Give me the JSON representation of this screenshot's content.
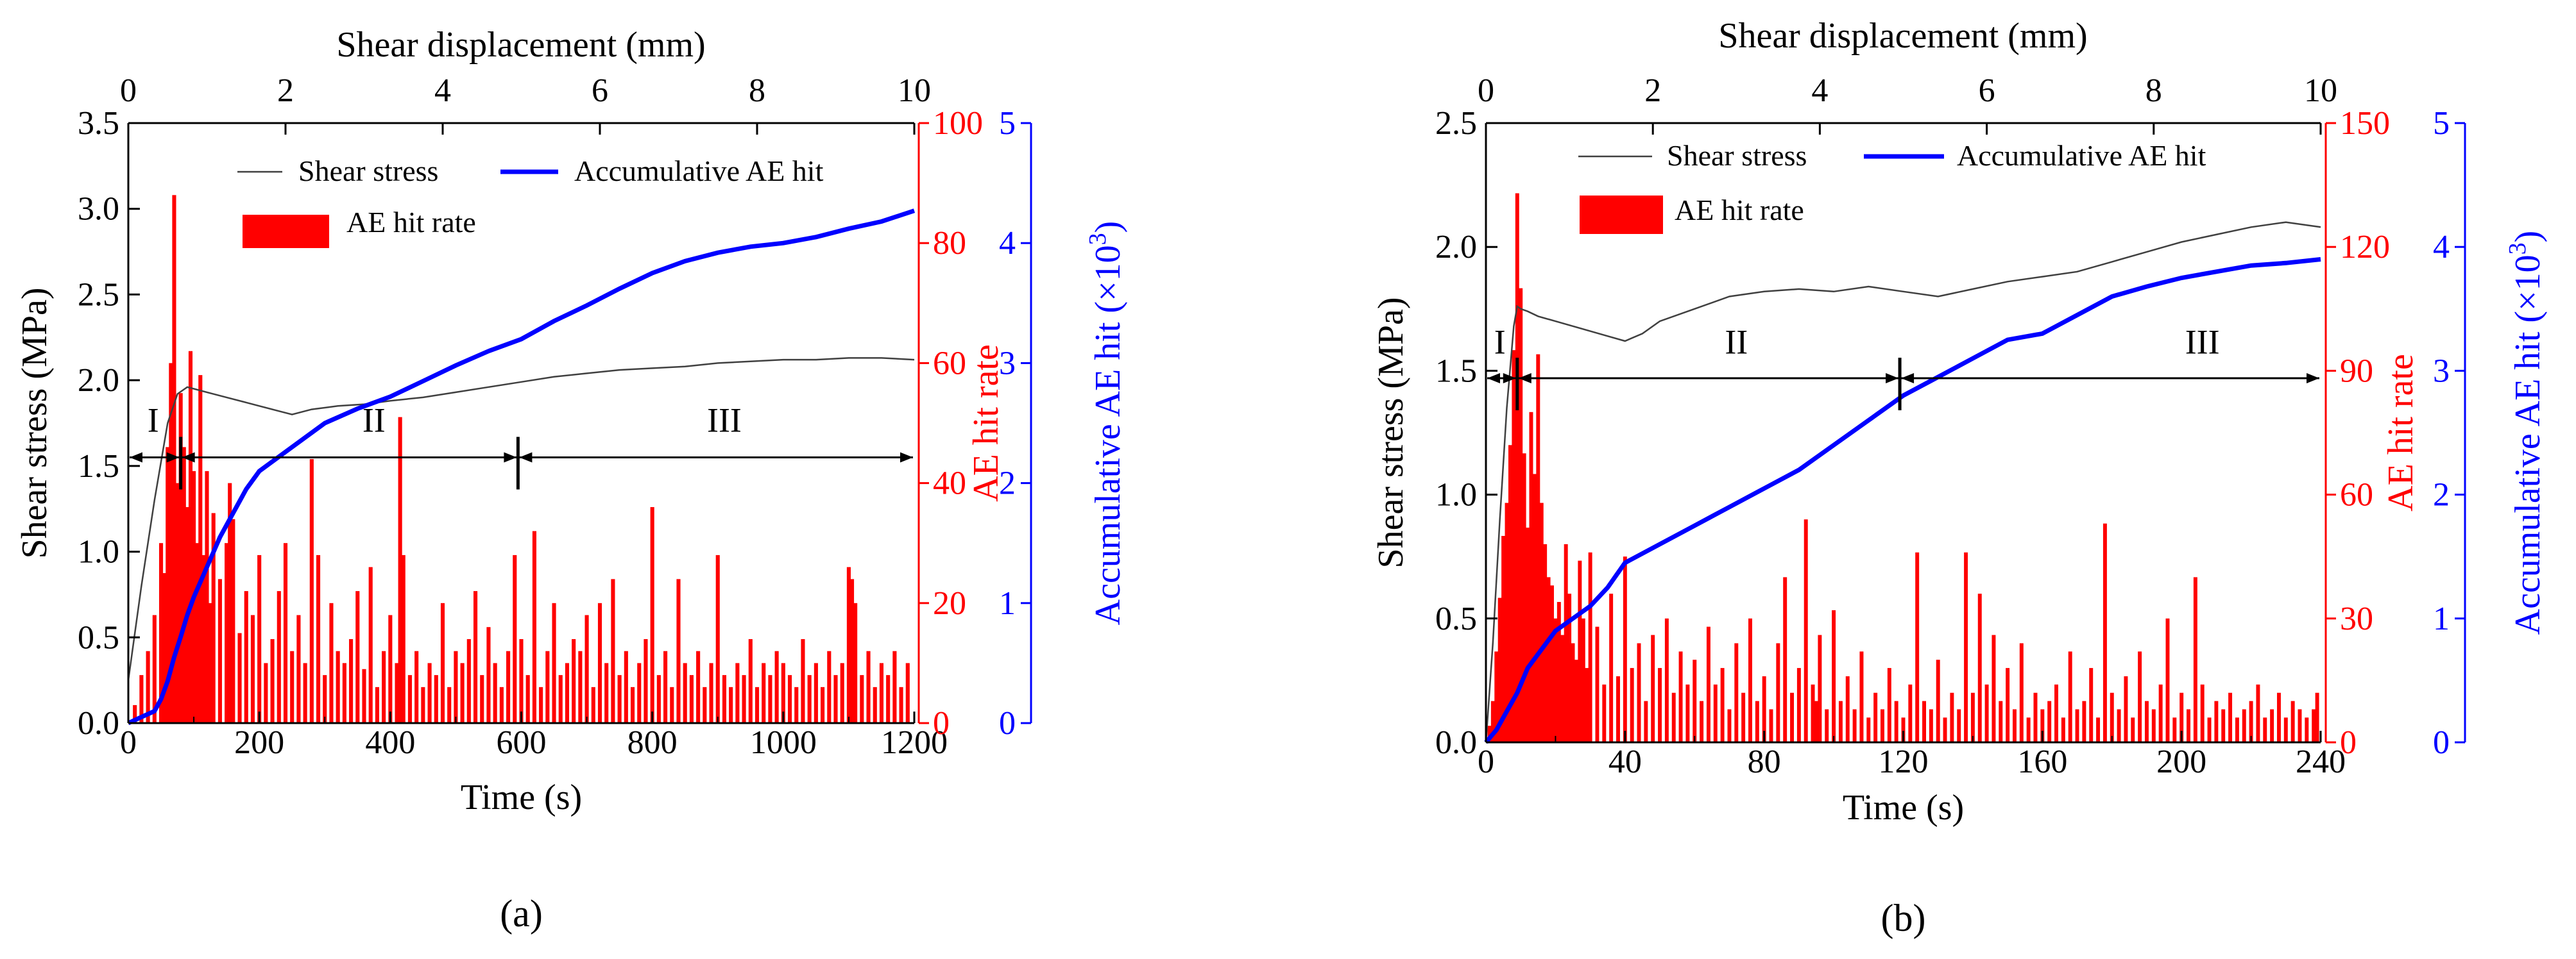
{
  "colors": {
    "stress": "#404040",
    "rate": "#ff0000",
    "accum": "#0000ff",
    "axis": "#000000"
  },
  "chart_data": [
    {
      "panel_label": "(a)",
      "type": "bar+line",
      "x": {
        "label": "Time (s)",
        "range": [
          0,
          1200
        ],
        "ticks": [
          0,
          200,
          400,
          600,
          800,
          1000,
          1200
        ]
      },
      "x_top": {
        "label": "Shear displacement (mm)",
        "range": [
          0,
          10
        ],
        "ticks": [
          0,
          2,
          4,
          6,
          8,
          10
        ]
      },
      "y_left": {
        "label": "Shear stress (MPa)",
        "range": [
          0,
          3.5
        ],
        "ticks": [
          "0.0",
          "0.5",
          "1.0",
          "1.5",
          "2.0",
          "2.5",
          "3.0",
          "3.5"
        ]
      },
      "y_right1": {
        "label": "AE hit rate",
        "range": [
          0,
          100
        ],
        "ticks": [
          0,
          20,
          40,
          60,
          80,
          100
        ]
      },
      "y_right2": {
        "label_main": "Accumulative AE hit (×10",
        "label_sup": "3",
        "label_end": ")",
        "range": [
          0,
          5
        ],
        "ticks": [
          0,
          1,
          2,
          3,
          4,
          5
        ]
      },
      "legend": {
        "stress": "Shear stress",
        "accum": "Accumulative AE hit",
        "rate": "AE hit rate"
      },
      "stages": {
        "labels": [
          "I",
          "II",
          "III"
        ],
        "stress_level": 1.55,
        "boundaries": [
          80,
          595
        ],
        "label_x": [
          38,
          375,
          910
        ],
        "label_y": 1.7
      },
      "series": [
        {
          "name": "Shear stress",
          "kind": "line",
          "axis": "y_left",
          "t": [
            0,
            20,
            40,
            60,
            75,
            90,
            100,
            120,
            150,
            180,
            200,
            230,
            250,
            280,
            320,
            360,
            400,
            450,
            500,
            550,
            600,
            650,
            700,
            750,
            800,
            850,
            900,
            950,
            1000,
            1050,
            1100,
            1150,
            1200
          ],
          "v": [
            0.25,
            0.8,
            1.3,
            1.75,
            1.92,
            1.96,
            1.95,
            1.93,
            1.9,
            1.87,
            1.85,
            1.82,
            1.8,
            1.83,
            1.85,
            1.86,
            1.88,
            1.9,
            1.93,
            1.96,
            1.99,
            2.02,
            2.04,
            2.06,
            2.07,
            2.08,
            2.1,
            2.11,
            2.12,
            2.12,
            2.13,
            2.13,
            2.12
          ]
        },
        {
          "name": "Accumulative AE hit",
          "kind": "line",
          "axis": "y_right2",
          "t": [
            0,
            20,
            40,
            50,
            60,
            70,
            80,
            90,
            100,
            120,
            140,
            160,
            180,
            200,
            250,
            300,
            350,
            400,
            450,
            500,
            550,
            600,
            650,
            700,
            750,
            800,
            850,
            900,
            950,
            1000,
            1050,
            1100,
            1150,
            1200
          ],
          "v": [
            0,
            0.05,
            0.1,
            0.2,
            0.35,
            0.55,
            0.72,
            0.9,
            1.05,
            1.3,
            1.55,
            1.75,
            1.95,
            2.1,
            2.3,
            2.5,
            2.62,
            2.72,
            2.85,
            2.98,
            3.1,
            3.2,
            3.35,
            3.48,
            3.62,
            3.75,
            3.85,
            3.92,
            3.97,
            4.0,
            4.05,
            4.12,
            4.18,
            4.27
          ]
        },
        {
          "name": "AE hit rate",
          "kind": "bar",
          "axis": "y_right1",
          "bin_width": 6,
          "t": [
            10,
            20,
            30,
            40,
            50,
            55,
            60,
            65,
            70,
            75,
            80,
            85,
            90,
            95,
            100,
            105,
            110,
            115,
            120,
            125,
            130,
            140,
            150,
            155,
            160,
            170,
            180,
            190,
            200,
            210,
            220,
            230,
            240,
            250,
            260,
            270,
            280,
            290,
            300,
            310,
            320,
            330,
            340,
            350,
            360,
            370,
            380,
            390,
            400,
            410,
            415,
            420,
            430,
            440,
            450,
            460,
            470,
            480,
            490,
            500,
            510,
            520,
            530,
            540,
            550,
            560,
            570,
            580,
            590,
            600,
            610,
            620,
            630,
            640,
            650,
            660,
            670,
            680,
            690,
            700,
            710,
            720,
            730,
            740,
            750,
            760,
            770,
            780,
            790,
            800,
            810,
            820,
            830,
            840,
            850,
            860,
            870,
            880,
            890,
            900,
            910,
            920,
            930,
            940,
            950,
            960,
            970,
            980,
            990,
            1000,
            1010,
            1020,
            1030,
            1040,
            1050,
            1060,
            1070,
            1080,
            1090,
            1100,
            1105,
            1110,
            1120,
            1130,
            1140,
            1150,
            1160,
            1170,
            1180,
            1190
          ],
          "v": [
            3,
            8,
            12,
            18,
            30,
            25,
            46,
            60,
            88,
            40,
            55,
            46,
            36,
            62,
            42,
            30,
            58,
            28,
            42,
            20,
            35,
            24,
            30,
            40,
            34,
            15,
            22,
            18,
            28,
            10,
            14,
            22,
            30,
            12,
            18,
            10,
            44,
            28,
            8,
            20,
            12,
            10,
            14,
            22,
            9,
            26,
            6,
            12,
            18,
            10,
            51,
            28,
            8,
            12,
            6,
            10,
            8,
            20,
            6,
            12,
            10,
            14,
            22,
            8,
            16,
            10,
            6,
            12,
            28,
            14,
            8,
            32,
            6,
            12,
            20,
            8,
            10,
            14,
            12,
            18,
            6,
            20,
            10,
            24,
            8,
            12,
            6,
            10,
            14,
            36,
            8,
            12,
            6,
            24,
            10,
            8,
            12,
            6,
            10,
            28,
            8,
            6,
            10,
            8,
            14,
            6,
            10,
            8,
            12,
            10,
            8,
            6,
            14,
            8,
            10,
            6,
            12,
            8,
            10,
            26,
            24,
            20,
            8,
            12,
            6,
            10,
            8,
            12,
            6,
            10
          ]
        }
      ]
    },
    {
      "panel_label": "(b)",
      "type": "bar+line",
      "x": {
        "label": "Time (s)",
        "range": [
          0,
          240
        ],
        "ticks": [
          0,
          40,
          80,
          120,
          160,
          200,
          240
        ]
      },
      "x_top": {
        "label": "Shear displacement (mm)",
        "range": [
          0,
          10
        ],
        "ticks": [
          0,
          2,
          4,
          6,
          8,
          10
        ]
      },
      "y_left": {
        "label": "Shear stress  (MPa)",
        "range": [
          0,
          2.5
        ],
        "ticks": [
          "0.0",
          "0.5",
          "1.0",
          "1.5",
          "2.0",
          "2.5"
        ]
      },
      "y_right1": {
        "label": "AE hit rate",
        "range": [
          0,
          150
        ],
        "ticks": [
          0,
          30,
          60,
          90,
          120,
          150
        ]
      },
      "y_right2": {
        "label_main": "Accumulative AE hit (×10",
        "label_sup": "3",
        "label_end": ")",
        "range": [
          0,
          5
        ],
        "ticks": [
          0,
          1,
          2,
          3,
          4,
          5
        ]
      },
      "legend": {
        "stress": "Shear stress",
        "accum": "Accumulative AE hit",
        "rate": "AE hit rate"
      },
      "stages": {
        "labels": [
          "I",
          "II",
          "III"
        ],
        "stress_level": 1.47,
        "boundaries": [
          9,
          119
        ],
        "label_x": [
          4,
          72,
          206
        ],
        "label_y": 1.57
      },
      "series": [
        {
          "name": "Shear stress",
          "kind": "line",
          "axis": "y_left",
          "t": [
            0,
            2,
            4,
            6,
            8,
            9,
            10,
            12,
            15,
            20,
            25,
            30,
            35,
            40,
            45,
            50,
            60,
            70,
            80,
            90,
            100,
            110,
            120,
            130,
            140,
            150,
            160,
            170,
            180,
            190,
            200,
            210,
            220,
            230,
            240
          ],
          "v": [
            0.0,
            0.4,
            0.9,
            1.35,
            1.68,
            1.76,
            1.75,
            1.74,
            1.72,
            1.7,
            1.68,
            1.66,
            1.64,
            1.62,
            1.65,
            1.7,
            1.75,
            1.8,
            1.82,
            1.83,
            1.82,
            1.84,
            1.82,
            1.8,
            1.83,
            1.86,
            1.88,
            1.9,
            1.94,
            1.98,
            2.02,
            2.05,
            2.08,
            2.1,
            2.08
          ]
        },
        {
          "name": "Accumulative AE hit",
          "kind": "line",
          "axis": "y_right2",
          "t": [
            0,
            3,
            6,
            9,
            12,
            16,
            20,
            25,
            30,
            35,
            40,
            50,
            60,
            70,
            80,
            90,
            100,
            110,
            120,
            130,
            140,
            150,
            160,
            170,
            180,
            190,
            200,
            210,
            220,
            230,
            240
          ],
          "v": [
            0,
            0.1,
            0.25,
            0.4,
            0.6,
            0.75,
            0.9,
            1.0,
            1.1,
            1.25,
            1.45,
            1.6,
            1.75,
            1.9,
            2.05,
            2.2,
            2.4,
            2.6,
            2.8,
            2.95,
            3.1,
            3.25,
            3.3,
            3.45,
            3.6,
            3.68,
            3.75,
            3.8,
            3.85,
            3.87,
            3.9
          ]
        },
        {
          "name": "AE hit rate",
          "kind": "bar",
          "axis": "y_right1",
          "bin_width": 1.1,
          "t": [
            1,
            2,
            3,
            4,
            5,
            6,
            7,
            8,
            9,
            10,
            11,
            12,
            13,
            14,
            15,
            16,
            17,
            18,
            19,
            20,
            21,
            22,
            23,
            24,
            25,
            26,
            27,
            28,
            29,
            30,
            32,
            34,
            36,
            38,
            40,
            42,
            44,
            46,
            48,
            50,
            52,
            54,
            56,
            58,
            60,
            62,
            64,
            66,
            68,
            70,
            72,
            74,
            76,
            78,
            80,
            82,
            84,
            86,
            88,
            90,
            92,
            94,
            95,
            96,
            98,
            100,
            102,
            104,
            106,
            108,
            110,
            112,
            114,
            116,
            118,
            120,
            122,
            124,
            126,
            128,
            130,
            132,
            134,
            136,
            138,
            140,
            142,
            144,
            146,
            148,
            150,
            152,
            154,
            156,
            158,
            160,
            162,
            164,
            166,
            168,
            170,
            172,
            174,
            176,
            178,
            180,
            182,
            184,
            186,
            188,
            190,
            192,
            194,
            196,
            198,
            200,
            202,
            204,
            206,
            208,
            210,
            212,
            214,
            216,
            218,
            220,
            222,
            224,
            226,
            228,
            230,
            232,
            234,
            236,
            238,
            239
          ],
          "v": [
            4,
            10,
            22,
            35,
            50,
            58,
            72,
            95,
            133,
            110,
            70,
            52,
            80,
            65,
            94,
            58,
            48,
            40,
            38,
            30,
            34,
            26,
            48,
            36,
            24,
            20,
            44,
            30,
            18,
            46,
            28,
            14,
            36,
            16,
            45,
            18,
            24,
            10,
            26,
            18,
            30,
            12,
            22,
            14,
            20,
            10,
            28,
            14,
            18,
            8,
            24,
            12,
            30,
            10,
            16,
            8,
            24,
            40,
            12,
            18,
            54,
            14,
            10,
            26,
            8,
            32,
            10,
            16,
            8,
            22,
            6,
            12,
            8,
            18,
            10,
            6,
            14,
            46,
            10,
            8,
            20,
            6,
            12,
            8,
            46,
            12,
            36,
            14,
            26,
            10,
            18,
            8,
            24,
            6,
            12,
            8,
            10,
            14,
            6,
            22,
            8,
            10,
            18,
            6,
            53,
            12,
            8,
            16,
            6,
            22,
            10,
            8,
            14,
            30,
            6,
            12,
            8,
            40,
            14,
            6,
            10,
            8,
            12,
            6,
            8,
            10,
            14,
            6,
            8,
            12,
            6,
            10,
            8,
            6,
            8,
            12
          ]
        }
      ]
    }
  ]
}
